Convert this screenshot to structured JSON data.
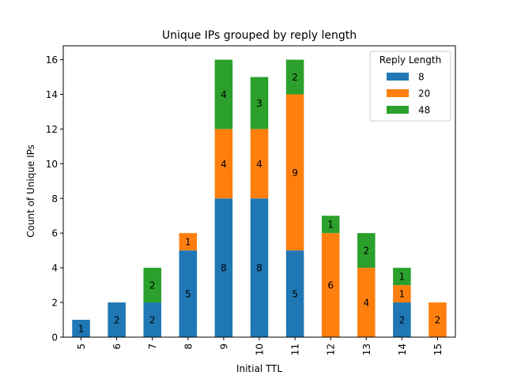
{
  "chart_data": {
    "type": "bar",
    "stacked": true,
    "title": "Unique IPs grouped by reply length",
    "xlabel": "Initial TTL",
    "ylabel": "Count of Unique IPs",
    "ylim": [
      0,
      16.8
    ],
    "yticks": [
      0,
      2,
      4,
      6,
      8,
      10,
      12,
      14,
      16
    ],
    "grid": false,
    "legend": {
      "title": "Reply Length",
      "position": "top-right"
    },
    "categories": [
      "5",
      "6",
      "7",
      "8",
      "9",
      "10",
      "11",
      "12",
      "13",
      "14",
      "15"
    ],
    "series": [
      {
        "name": "8",
        "color": "#1f77b4",
        "values": [
          1,
          2,
          2,
          5,
          8,
          8,
          5,
          0,
          0,
          2,
          0
        ]
      },
      {
        "name": "20",
        "color": "#ff7f0e",
        "values": [
          0,
          0,
          0,
          1,
          4,
          4,
          9,
          6,
          4,
          1,
          2
        ]
      },
      {
        "name": "48",
        "color": "#2ca02c",
        "values": [
          0,
          0,
          2,
          0,
          4,
          3,
          2,
          1,
          2,
          1,
          0
        ]
      }
    ]
  }
}
